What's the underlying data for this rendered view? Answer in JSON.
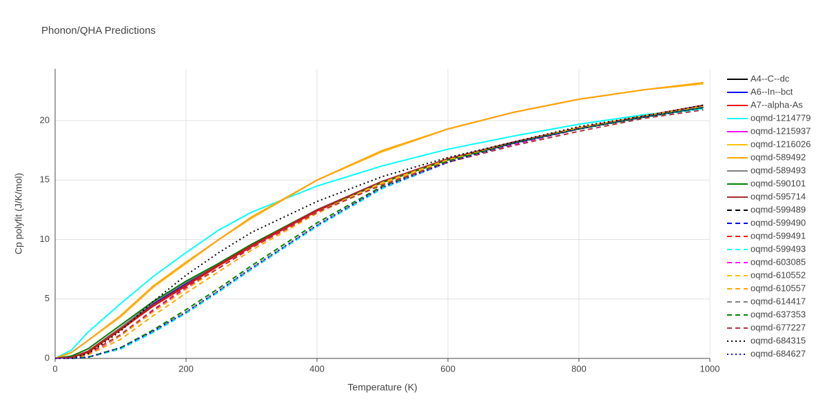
{
  "chart_data": {
    "type": "line",
    "title": "Phonon/QHA Predictions",
    "x_label": "Temperature (K)",
    "y_label": "Cp polyfit (J/K/mol)",
    "xlim": [
      0,
      1000
    ],
    "ylim": [
      0,
      24.35
    ],
    "xticks": [
      0,
      200,
      400,
      600,
      800,
      1000
    ],
    "yticks": [
      0,
      5,
      10,
      15,
      20
    ],
    "grid": true,
    "x": [
      0,
      25,
      50,
      100,
      150,
      200,
      250,
      300,
      400,
      500,
      600,
      700,
      800,
      900,
      990
    ],
    "series": [
      {
        "name": "A4--C--dc",
        "color": "#000000",
        "style": "solid",
        "values": [
          0,
          0.1,
          0.5,
          2.5,
          4.6,
          6.3,
          7.9,
          9.5,
          12.5,
          14.9,
          16.7,
          18.1,
          19.4,
          20.4,
          21.2
        ]
      },
      {
        "name": "A6--In--bct",
        "color": "#0000ff",
        "style": "solid",
        "values": [
          0,
          0.1,
          0.5,
          2.5,
          4.6,
          6.3,
          7.9,
          9.5,
          12.5,
          14.9,
          16.7,
          18.1,
          19.4,
          20.4,
          21.2
        ]
      },
      {
        "name": "A7--alpha-As",
        "color": "#ff0000",
        "style": "solid",
        "values": [
          0,
          0.1,
          0.5,
          2.4,
          4.4,
          6.1,
          7.8,
          9.4,
          12.4,
          14.8,
          16.7,
          18.1,
          19.4,
          20.4,
          21.2
        ]
      },
      {
        "name": "oqmd-1214779",
        "color": "#00ffff",
        "style": "solid",
        "values": [
          0,
          0.7,
          2.2,
          4.6,
          6.9,
          8.9,
          10.8,
          12.3,
          14.5,
          16.2,
          17.6,
          18.7,
          19.7,
          20.5,
          21.0
        ]
      },
      {
        "name": "oqmd-1215937",
        "color": "#ff00ff",
        "style": "solid",
        "values": [
          0,
          0.5,
          1.5,
          3.5,
          6.0,
          8.0,
          10.0,
          11.8,
          15.0,
          17.4,
          19.3,
          20.7,
          21.8,
          22.6,
          23.1
        ]
      },
      {
        "name": "oqmd-1216026",
        "color": "#ffc000",
        "style": "solid",
        "values": [
          0,
          0.5,
          1.5,
          3.5,
          6.0,
          8.0,
          10.0,
          11.8,
          15.0,
          17.4,
          19.3,
          20.7,
          21.8,
          22.6,
          23.1
        ]
      },
      {
        "name": "oqmd-589492",
        "color": "#ffa500",
        "style": "solid",
        "values": [
          0,
          0.5,
          1.5,
          3.6,
          6.1,
          8.1,
          10.0,
          11.9,
          15.0,
          17.5,
          19.3,
          20.7,
          21.8,
          22.6,
          23.2
        ]
      },
      {
        "name": "oqmd-589493",
        "color": "#808080",
        "style": "solid",
        "values": [
          0,
          0.1,
          0.6,
          2.6,
          4.7,
          6.4,
          8.0,
          9.6,
          12.5,
          14.9,
          16.8,
          18.2,
          19.4,
          20.4,
          21.2
        ]
      },
      {
        "name": "oqmd-590101",
        "color": "#008000",
        "style": "solid",
        "values": [
          0,
          0.2,
          0.8,
          2.8,
          4.8,
          6.5,
          8.0,
          9.6,
          12.5,
          14.8,
          16.7,
          18.1,
          19.3,
          20.3,
          21.1
        ]
      },
      {
        "name": "oqmd-595714",
        "color": "#a52a2a",
        "style": "solid",
        "values": [
          0,
          0.1,
          0.6,
          2.5,
          4.5,
          6.2,
          7.9,
          9.5,
          12.5,
          14.9,
          16.8,
          18.2,
          19.4,
          20.4,
          21.3
        ]
      },
      {
        "name": "oqmd-599489",
        "color": "#000000",
        "style": "dash",
        "values": [
          0,
          0,
          0.1,
          0.8,
          2.2,
          3.8,
          5.6,
          7.5,
          11.1,
          14.3,
          16.5,
          18.1,
          19.3,
          20.3,
          21.1
        ]
      },
      {
        "name": "oqmd-599490",
        "color": "#0000ff",
        "style": "dash",
        "values": [
          0,
          0,
          0.1,
          0.8,
          2.2,
          3.8,
          5.6,
          7.5,
          11.1,
          14.3,
          16.5,
          18.1,
          19.3,
          20.3,
          21.1
        ]
      },
      {
        "name": "oqmd-599491",
        "color": "#ff0000",
        "style": "dash",
        "values": [
          0,
          0,
          0.3,
          1.9,
          4.0,
          5.9,
          7.6,
          9.3,
          12.3,
          14.7,
          16.6,
          18.0,
          19.3,
          20.3,
          21.1
        ]
      },
      {
        "name": "oqmd-599493",
        "color": "#00ffff",
        "style": "dash",
        "values": [
          0,
          0,
          0.1,
          0.8,
          2.2,
          3.8,
          5.6,
          7.5,
          11.1,
          14.3,
          16.5,
          18.1,
          19.3,
          20.3,
          21.0
        ]
      },
      {
        "name": "oqmd-603085",
        "color": "#ff00ff",
        "style": "dash",
        "values": [
          0,
          0,
          0.3,
          1.9,
          4.0,
          5.9,
          7.6,
          9.3,
          12.3,
          14.7,
          16.6,
          18.0,
          19.3,
          20.3,
          21.1
        ]
      },
      {
        "name": "oqmd-610552",
        "color": "#ffc000",
        "style": "dash",
        "values": [
          0,
          0,
          0.4,
          1.9,
          3.9,
          5.8,
          7.6,
          9.3,
          12.3,
          14.8,
          16.7,
          18.1,
          19.4,
          20.4,
          21.2
        ]
      },
      {
        "name": "oqmd-610557",
        "color": "#ffa500",
        "style": "dash",
        "values": [
          0,
          0,
          0.3,
          1.6,
          3.6,
          5.5,
          7.3,
          9.1,
          12.2,
          14.7,
          16.6,
          18.1,
          19.4,
          20.4,
          21.2
        ]
      },
      {
        "name": "oqmd-614417",
        "color": "#808080",
        "style": "dash",
        "values": [
          0,
          0,
          0.1,
          0.9,
          2.3,
          3.9,
          5.7,
          7.6,
          11.2,
          14.4,
          16.5,
          18.1,
          19.3,
          20.3,
          21.1
        ]
      },
      {
        "name": "oqmd-637353",
        "color": "#008000",
        "style": "dash",
        "values": [
          0,
          0,
          0.1,
          0.9,
          2.4,
          4.1,
          5.9,
          7.8,
          11.4,
          14.5,
          16.6,
          18.1,
          19.3,
          20.3,
          21.1
        ]
      },
      {
        "name": "oqmd-677227",
        "color": "#b03040",
        "style": "dash",
        "values": [
          0,
          0,
          0.4,
          2.0,
          4.1,
          6.0,
          7.6,
          9.3,
          12.3,
          14.6,
          16.5,
          17.9,
          19.1,
          20.2,
          20.9
        ]
      },
      {
        "name": "oqmd-684315",
        "color": "#000000",
        "style": "dot",
        "values": [
          0,
          0,
          0.4,
          2.3,
          4.8,
          7.0,
          8.9,
          10.6,
          13.2,
          15.3,
          16.9,
          18.2,
          19.5,
          20.4,
          21.3
        ]
      },
      {
        "name": "oqmd-684627",
        "color": "#0000ff",
        "style": "dot",
        "values": [
          0,
          0,
          0.1,
          0.9,
          2.3,
          3.9,
          5.7,
          7.6,
          11.2,
          14.4,
          16.5,
          18.1,
          19.3,
          20.3,
          21.1
        ]
      }
    ]
  }
}
